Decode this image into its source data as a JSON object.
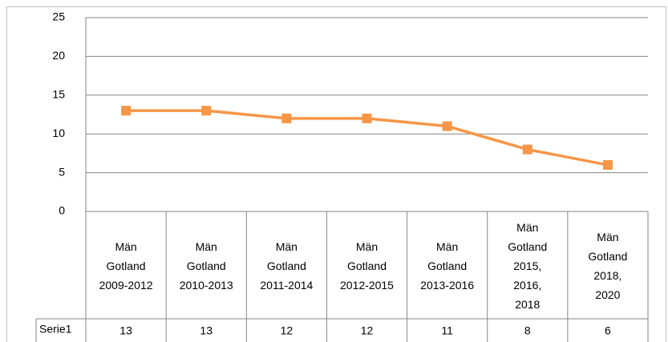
{
  "chart_data": {
    "type": "line",
    "categories": [
      "Män Gotland 2009-2012",
      "Män Gotland 2010-2013",
      "Män Gotland 2011-2014",
      "Män Gotland 2012-2015",
      "Män Gotland 2013-2016",
      "Män Gotland 2015, 2016, 2018",
      "Män Gotland 2018, 2020"
    ],
    "series": [
      {
        "name": "Serie1",
        "color": "#f79646",
        "values": [
          13,
          13,
          12,
          12,
          11,
          8,
          6
        ]
      }
    ],
    "ylim": [
      0,
      25
    ],
    "yticks": [
      0,
      5,
      10,
      15,
      20,
      25
    ],
    "grid": true,
    "data_table": true
  }
}
